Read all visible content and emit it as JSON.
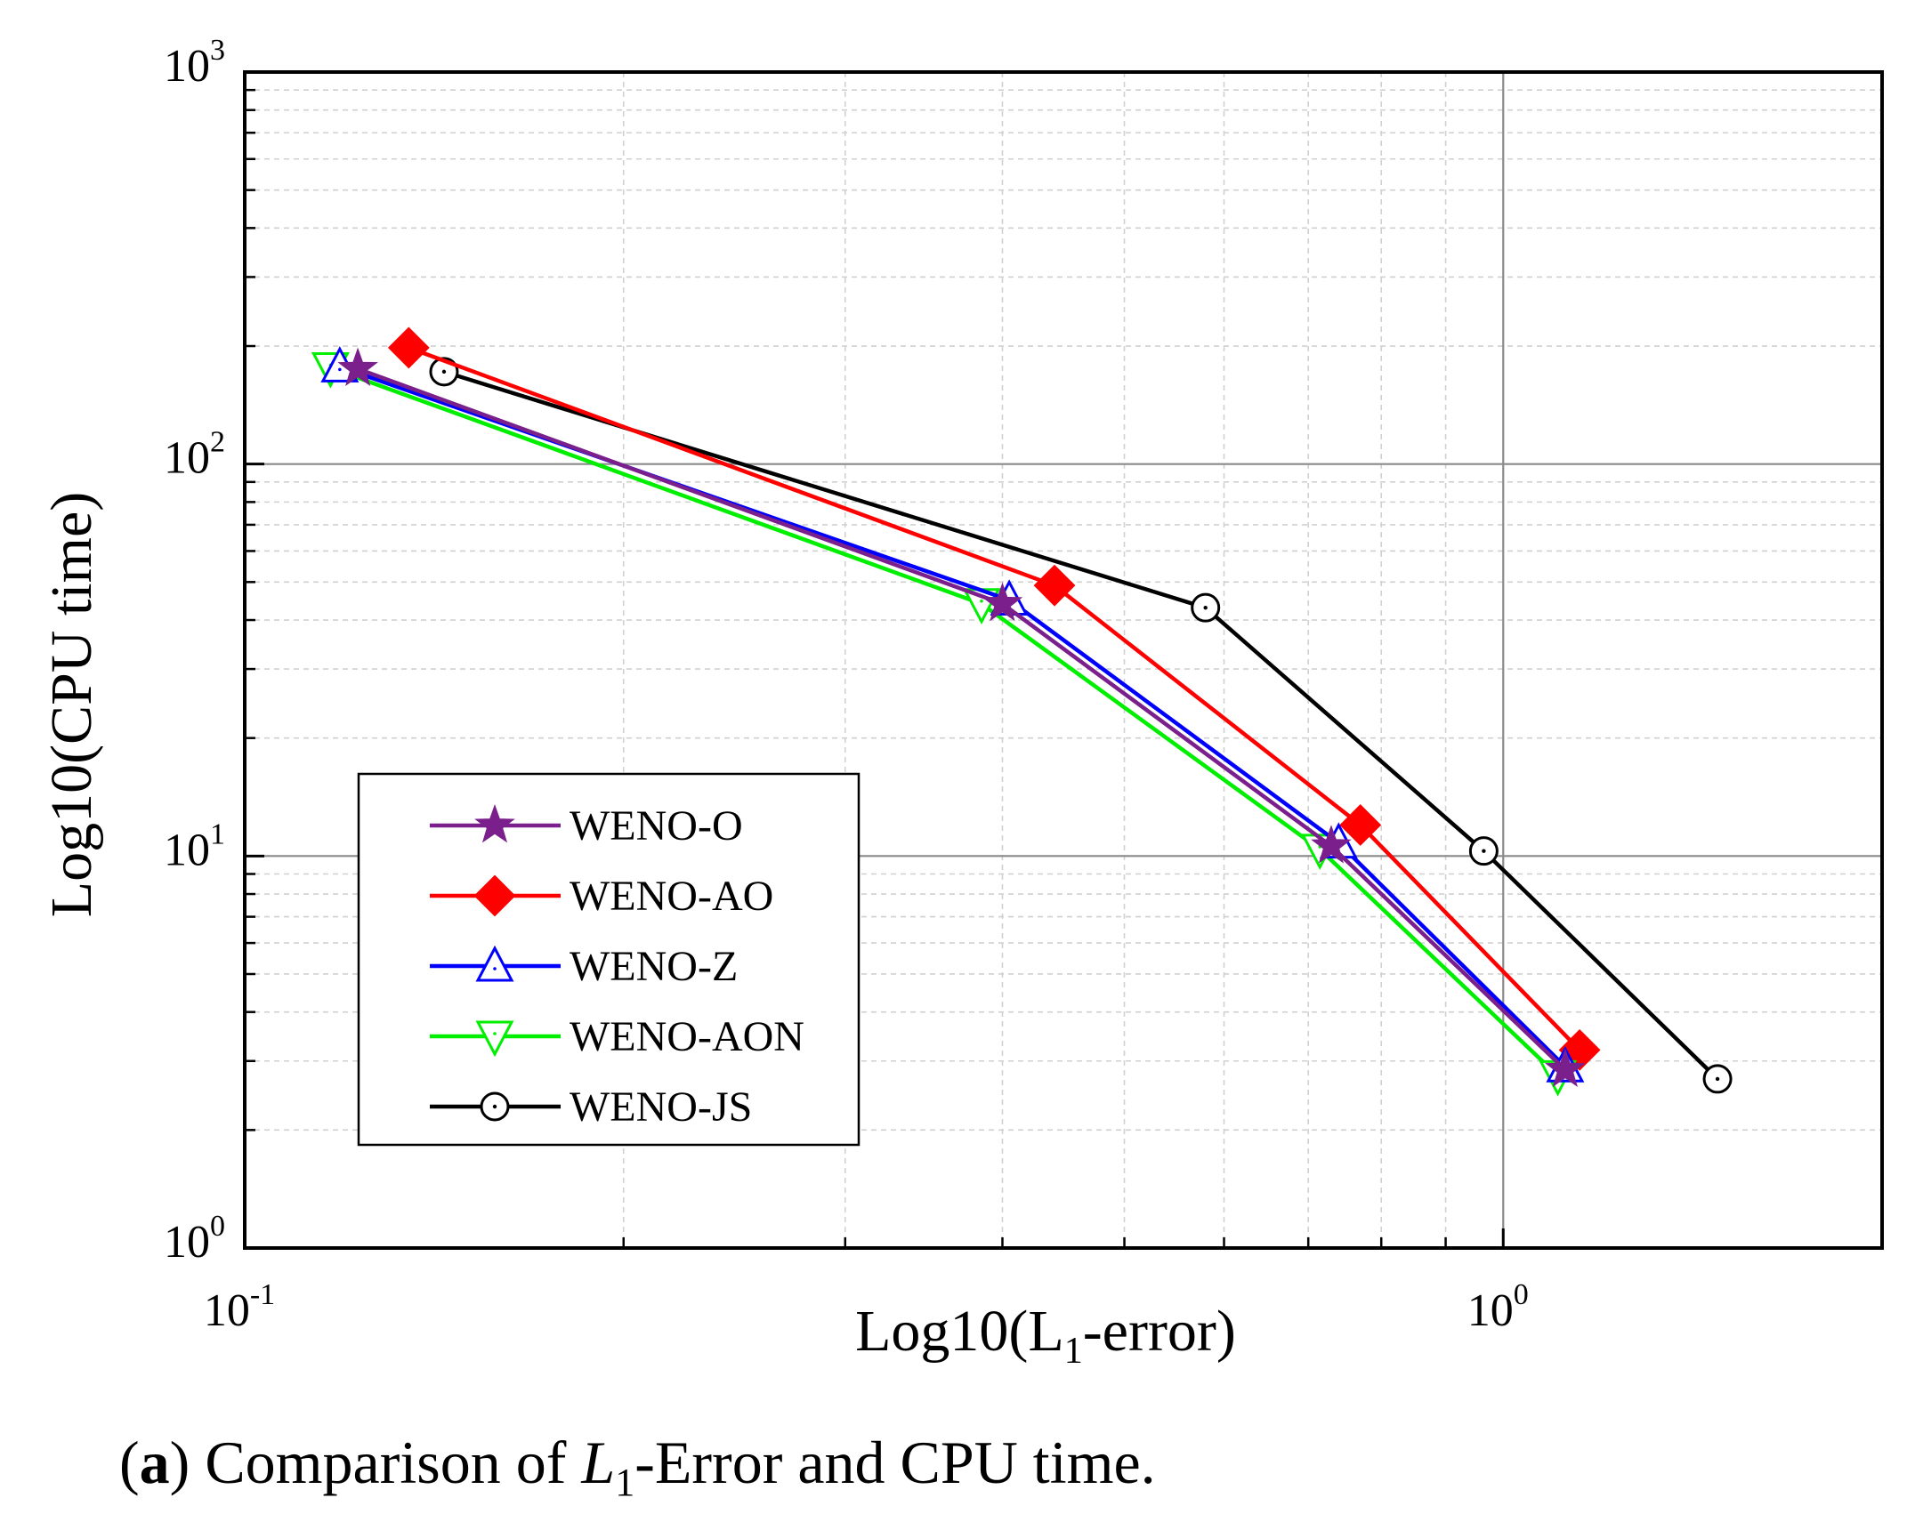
{
  "chart_data": {
    "type": "line",
    "scale": {
      "x": "log",
      "y": "log"
    },
    "xlabel_main": "Log10(L",
    "xlabel_sub": "1",
    "xlabel_tail": "-error)",
    "ylabel": "Log10(CPU time)",
    "xlim": [
      0.1,
      2.0
    ],
    "ylim": [
      1,
      1000
    ],
    "x_ticks": [
      {
        "value": 0.1,
        "base": "10",
        "exp": "-1"
      },
      {
        "value": 1,
        "base": "10",
        "exp": "0"
      }
    ],
    "y_ticks": [
      {
        "value": 1,
        "base": "10",
        "exp": "0"
      },
      {
        "value": 10,
        "base": "10",
        "exp": "1"
      },
      {
        "value": 100,
        "base": "10",
        "exp": "2"
      },
      {
        "value": 1000,
        "base": "10",
        "exp": "3"
      }
    ],
    "grid": true,
    "legend_position": "bottom-left",
    "series": [
      {
        "name": "WENO-O",
        "color": "#7b1f8c",
        "marker": "star",
        "x": [
          0.123,
          0.4,
          0.73,
          1.12
        ],
        "y": [
          175,
          44,
          10.6,
          2.85
        ]
      },
      {
        "name": "WENO-AO",
        "color": "#ff0000",
        "marker": "diamond",
        "x": [
          0.135,
          0.44,
          0.77,
          1.15
        ],
        "y": [
          198,
          49,
          12.0,
          3.2
        ]
      },
      {
        "name": "WENO-Z",
        "color": "#0000ff",
        "marker": "triangle-up",
        "x": [
          0.119,
          0.405,
          0.74,
          1.12
        ],
        "y": [
          177,
          45,
          10.8,
          2.9
        ]
      },
      {
        "name": "WENO-AON",
        "color": "#00ee00",
        "marker": "triangle-down",
        "x": [
          0.117,
          0.385,
          0.715,
          1.105
        ],
        "y": [
          176,
          44,
          10.4,
          2.75
        ]
      },
      {
        "name": "WENO-JS",
        "color": "#000000",
        "marker": "circle-dot",
        "x": [
          0.144,
          0.58,
          0.965,
          1.48
        ],
        "y": [
          172,
          43,
          10.3,
          2.7
        ]
      }
    ]
  },
  "caption": {
    "label": "a",
    "open": "(",
    "close": ")",
    "text_before": " Comparison of ",
    "symbol": "L",
    "symbol_sub": "1",
    "text_after": "-Error and CPU time."
  }
}
